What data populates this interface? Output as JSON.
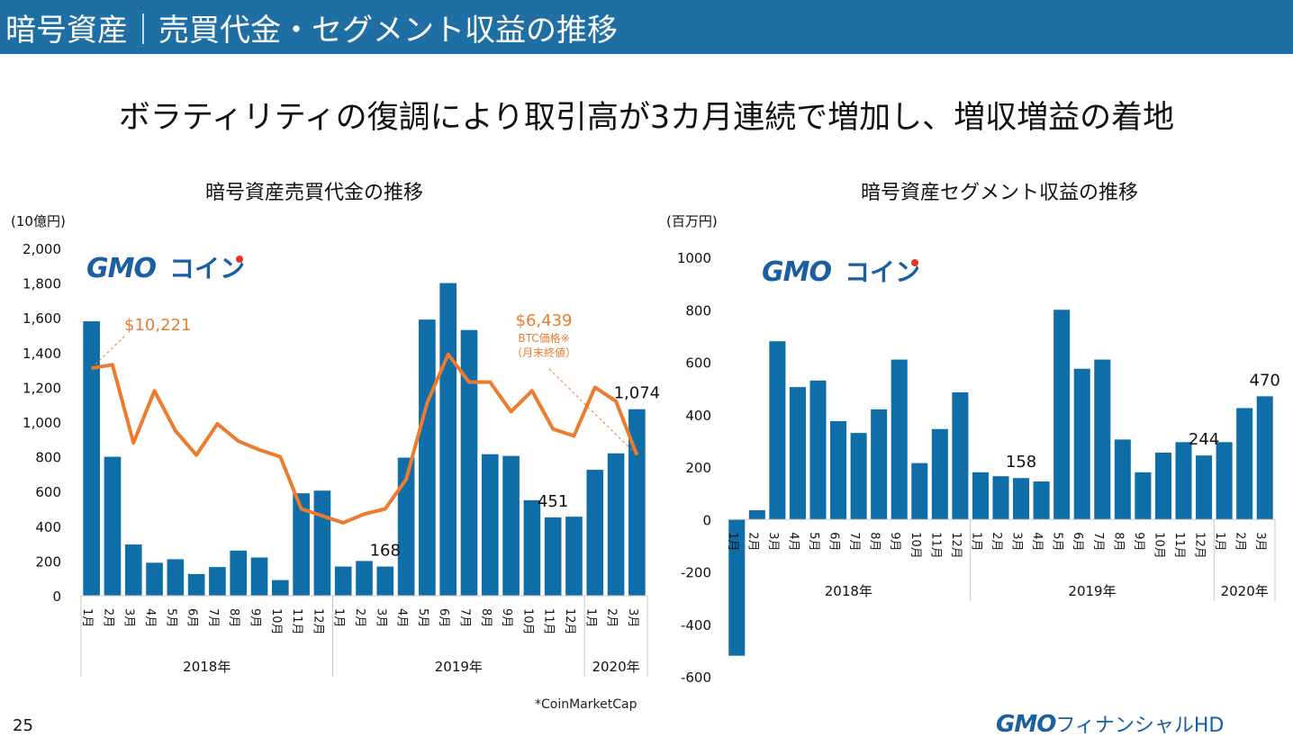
{
  "header": {
    "title": "暗号資産｜売買代金・セグメント収益の推移"
  },
  "headline": "ボラティリティの復調により取引高が3カ月連続で増加し、増収増益の着地",
  "colors": {
    "header_bg": "#1f6fa4",
    "bar": "#0f6ea8",
    "line": "#ec7b2e",
    "annotation": "#ec7b2e"
  },
  "logo": {
    "gmo": "GMO",
    "coin": "コイン"
  },
  "chart_data": [
    {
      "type": "bar",
      "title": "暗号資産売買代金の推移",
      "unit_label": "(10億円)",
      "categories": [
        "1月",
        "2月",
        "3月",
        "4月",
        "5月",
        "6月",
        "7月",
        "8月",
        "9月",
        "10月",
        "11月",
        "12月",
        "1月",
        "2月",
        "3月",
        "4月",
        "5月",
        "6月",
        "7月",
        "8月",
        "9月",
        "10月",
        "11月",
        "12月",
        "1月",
        "2月",
        "3月"
      ],
      "year_groups": [
        {
          "label": "2018年",
          "start": 0,
          "end": 11
        },
        {
          "label": "2019年",
          "start": 12,
          "end": 23
        },
        {
          "label": "2020年",
          "start": 24,
          "end": 26
        }
      ],
      "values": [
        1580,
        800,
        295,
        190,
        210,
        125,
        165,
        260,
        220,
        90,
        590,
        605,
        168,
        200,
        168,
        795,
        1590,
        1800,
        1530,
        815,
        805,
        550,
        451,
        455,
        725,
        820,
        1074
      ],
      "line_series": [
        1310,
        1330,
        880,
        1180,
        950,
        810,
        990,
        890,
        840,
        800,
        500,
        460,
        420,
        470,
        500,
        670,
        1110,
        1390,
        1230,
        1230,
        1060,
        1180,
        960,
        920,
        1200,
        1120,
        810
      ],
      "ylim": [
        0,
        2000
      ],
      "yticks": [
        "0",
        "200",
        "400",
        "600",
        "800",
        "1,000",
        "1,200",
        "1,400",
        "1,600",
        "1,800",
        "2,000"
      ],
      "data_labels": [
        {
          "index": 14,
          "text": "168"
        },
        {
          "index": 22,
          "text": "451"
        },
        {
          "index": 26,
          "text": "1,074"
        }
      ],
      "annotations": {
        "start_price": "$10,221",
        "end_price": "$6,439",
        "end_note_1": "BTC価格※",
        "end_note_2": "（月末終値）"
      },
      "source_note": "*CoinMarketCap"
    },
    {
      "type": "bar",
      "title": "暗号資産セグメント収益の推移",
      "unit_label": "(百万円)",
      "categories": [
        "1月",
        "2月",
        "3月",
        "4月",
        "5月",
        "6月",
        "7月",
        "8月",
        "9月",
        "10月",
        "11月",
        "12月",
        "1月",
        "2月",
        "3月",
        "4月",
        "5月",
        "6月",
        "7月",
        "8月",
        "9月",
        "10月",
        "11月",
        "12月",
        "1月",
        "2月",
        "3月"
      ],
      "year_groups": [
        {
          "label": "2018年",
          "start": 0,
          "end": 11
        },
        {
          "label": "2019年",
          "start": 12,
          "end": 23
        },
        {
          "label": "2020年",
          "start": 24,
          "end": 26
        }
      ],
      "values": [
        -520,
        35,
        680,
        505,
        530,
        375,
        330,
        420,
        610,
        215,
        345,
        485,
        180,
        165,
        158,
        145,
        800,
        575,
        610,
        305,
        180,
        255,
        295,
        244,
        295,
        425,
        470
      ],
      "ylim": [
        -600,
        1000
      ],
      "yticks": [
        "-600",
        "-400",
        "-200",
        "0",
        "200",
        "400",
        "600",
        "800",
        "1000"
      ],
      "data_labels": [
        {
          "index": 14,
          "text": "158"
        },
        {
          "index": 23,
          "text": "244"
        },
        {
          "index": 26,
          "text": "470"
        }
      ]
    }
  ],
  "footer": {
    "page_number": "25",
    "gmo": "GMO",
    "company": "フィナンシャルHD"
  }
}
